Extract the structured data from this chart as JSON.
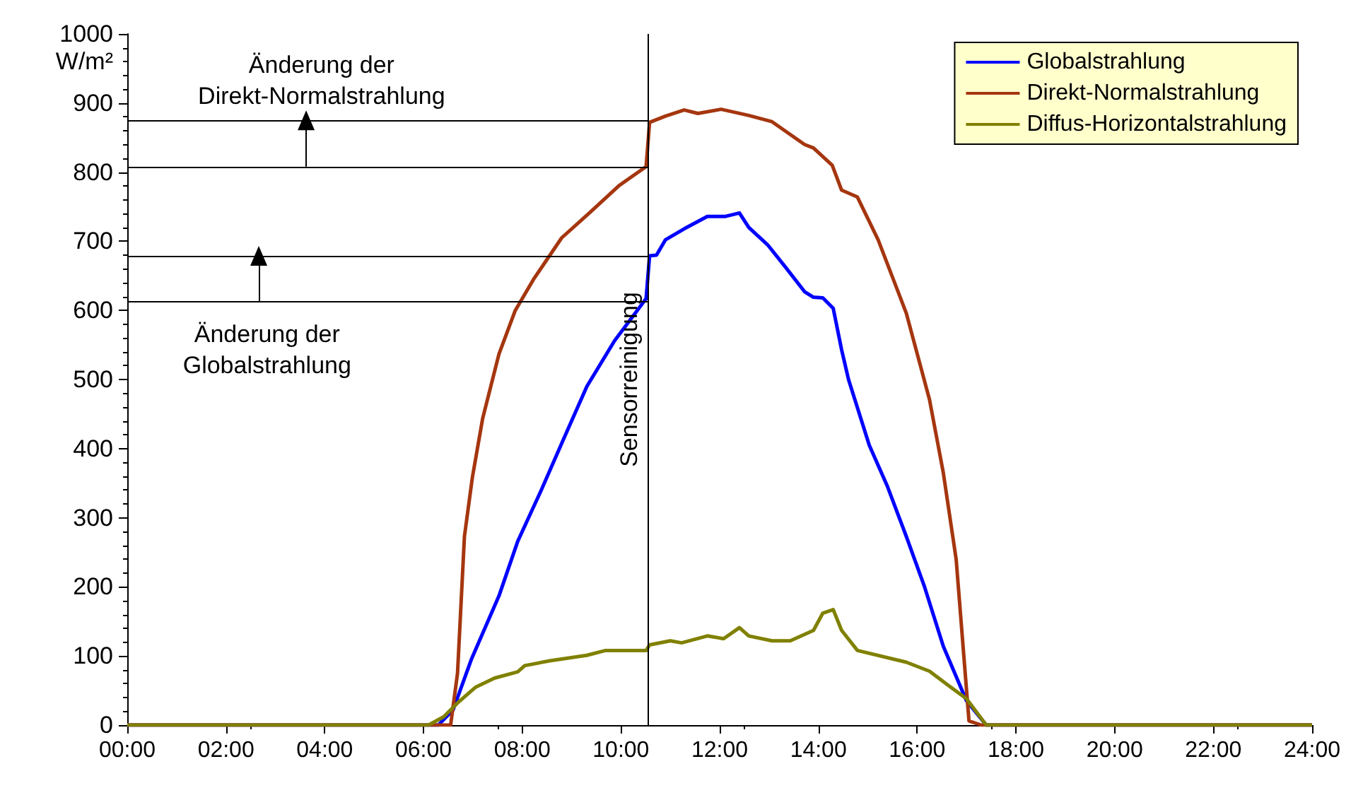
{
  "chart_data": {
    "type": "line",
    "ylabel": "W/m²",
    "xlim": [
      0,
      24
    ],
    "xticks": [
      {
        "value": 0,
        "label": "00:00"
      },
      {
        "value": 2,
        "label": "02:00"
      },
      {
        "value": 4,
        "label": "04:00"
      },
      {
        "value": 6,
        "label": "06:00"
      },
      {
        "value": 8,
        "label": "08:00"
      },
      {
        "value": 10,
        "label": "10:00"
      },
      {
        "value": 12,
        "label": "12:00"
      },
      {
        "value": 14,
        "label": "14:00"
      },
      {
        "value": 16,
        "label": "16:00"
      },
      {
        "value": 18,
        "label": "18:00"
      },
      {
        "value": 20,
        "label": "20:00"
      },
      {
        "value": 22,
        "label": "22:00"
      },
      {
        "value": 24,
        "label": "24:00"
      }
    ],
    "ylim": [
      0,
      1000
    ],
    "yticks": [
      0,
      100,
      200,
      300,
      400,
      500,
      600,
      700,
      800,
      900,
      1000
    ],
    "grid": false,
    "legend": "top right",
    "marker": "none",
    "line_style": "solid",
    "series": [
      {
        "name": "Globalstrahlung",
        "color": "#0000ff",
        "x": [
          0,
          6.3,
          6.6,
          6.97,
          7.53,
          7.91,
          8.38,
          8.84,
          9.31,
          9.87,
          10.51,
          10.58,
          10.72,
          10.9,
          11.28,
          11.75,
          12.12,
          12.4,
          12.59,
          12.97,
          13.34,
          13.72,
          13.9,
          14.09,
          14.3,
          14.47,
          14.61,
          15.03,
          15.4,
          15.78,
          16.15,
          16.53,
          17.0,
          17.4,
          24
        ],
        "values": [
          0,
          0,
          22,
          95,
          187,
          266,
          339,
          414,
          490,
          556,
          617,
          679,
          680,
          702,
          718,
          736,
          736,
          741,
          720,
          695,
          662,
          627,
          619,
          618,
          603,
          543,
          500,
          405,
          345,
          273,
          200,
          114,
          35,
          0,
          0
        ]
      },
      {
        "name": "Direkt-Normalstrahlung",
        "color": "#a5360f",
        "x": [
          0,
          6.55,
          6.69,
          6.83,
          6.99,
          7.2,
          7.53,
          7.86,
          8.23,
          8.8,
          9.36,
          9.97,
          10.51,
          10.58,
          10.9,
          11.28,
          11.56,
          12.03,
          12.59,
          13.06,
          13.72,
          13.9,
          14.28,
          14.47,
          14.79,
          15.21,
          15.78,
          16.25,
          16.53,
          16.79,
          17.05,
          17.3,
          24
        ],
        "values": [
          0,
          0,
          75,
          273,
          358,
          444,
          537,
          600,
          645,
          705,
          741,
          781,
          808,
          872,
          881,
          890,
          885,
          891,
          882,
          873,
          840,
          835,
          810,
          774,
          764,
          702,
          596,
          471,
          365,
          240,
          6,
          0,
          0
        ]
      },
      {
        "name": "Diffus-Horizontalstrahlung",
        "color": "#808000",
        "x": [
          0,
          6.1,
          6.41,
          6.69,
          7.06,
          7.44,
          7.91,
          8.05,
          8.56,
          9.31,
          9.69,
          10.51,
          10.58,
          11.0,
          11.23,
          11.75,
          12.08,
          12.4,
          12.59,
          13.06,
          13.43,
          13.9,
          14.09,
          14.3,
          14.47,
          14.79,
          15.78,
          16.25,
          16.62,
          17.0,
          17.4,
          24
        ],
        "values": [
          0,
          0,
          12,
          32,
          55,
          68,
          77,
          86,
          93,
          101,
          108,
          108,
          116,
          122,
          119,
          129,
          125,
          141,
          129,
          122,
          122,
          137,
          162,
          167,
          137,
          108,
          91,
          78,
          58,
          38,
          0,
          0
        ]
      }
    ],
    "ref_lines": [
      {
        "axis": "x",
        "value": 10.55,
        "label": "Sensorreinigung",
        "color": "#000000"
      },
      {
        "axis": "y",
        "value": 612,
        "color": "#000000"
      },
      {
        "axis": "y",
        "value": 679,
        "color": "#000000"
      },
      {
        "axis": "y",
        "value": 808,
        "color": "#000000"
      },
      {
        "axis": "y",
        "value": 875,
        "color": "#000000"
      }
    ],
    "annotations": [
      "Änderung der\nDirekt-Normalstrahlung",
      "Änderung der\nGlobalstrahlung"
    ]
  }
}
